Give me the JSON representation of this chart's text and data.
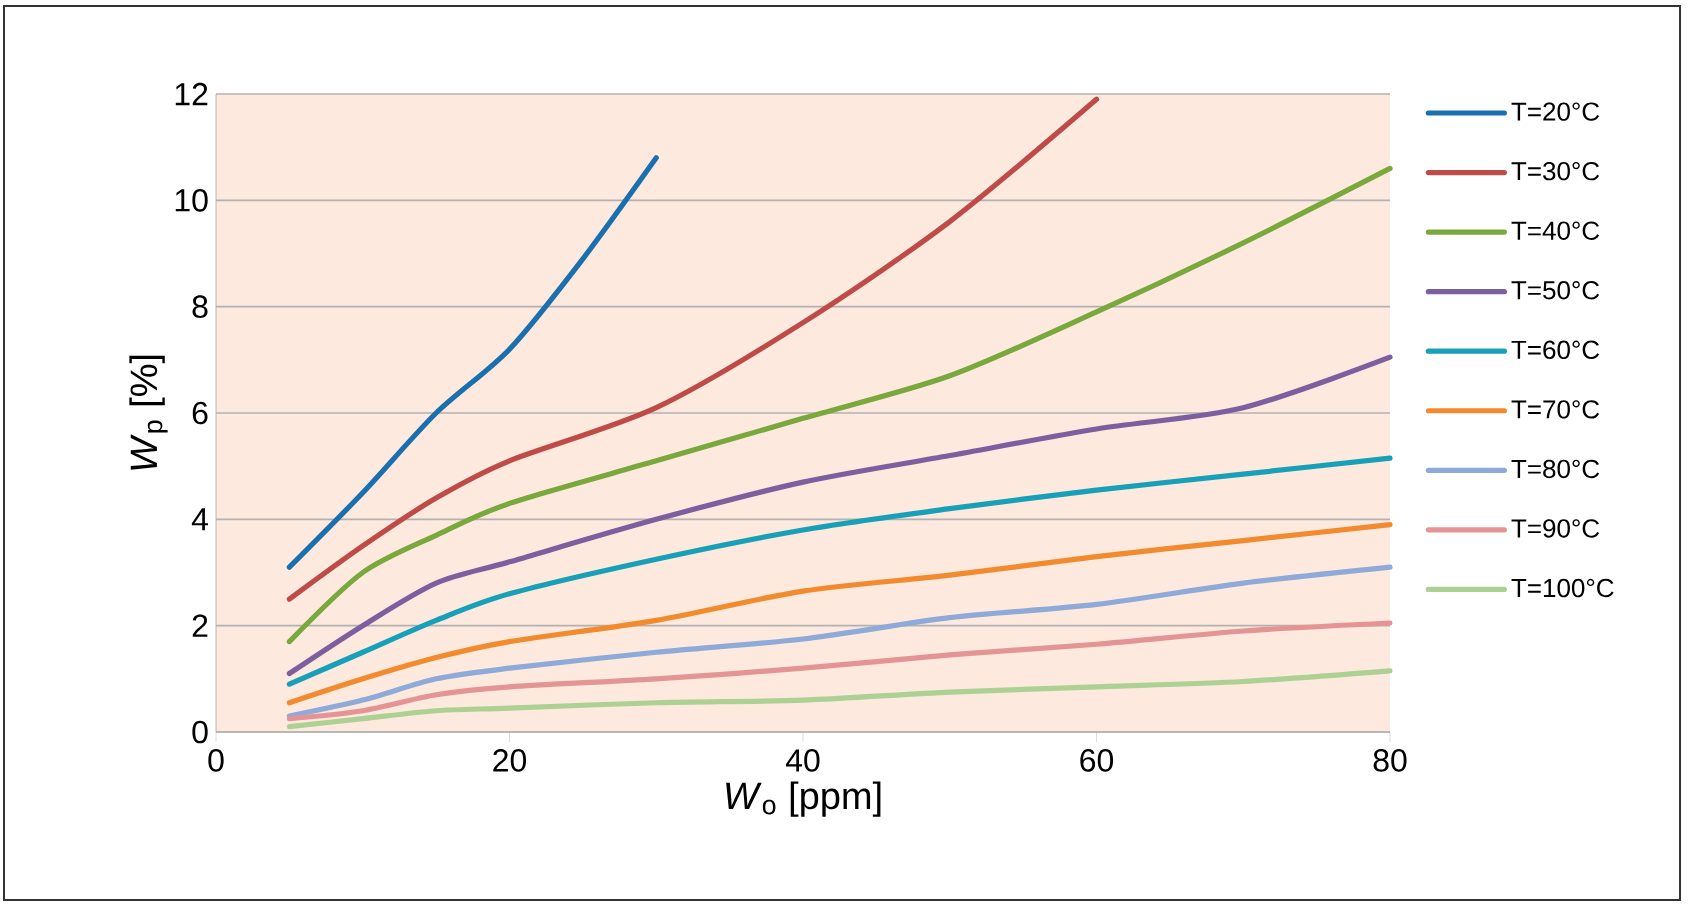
{
  "chart_data": {
    "type": "line",
    "xlabel": "*W*$_{o}$ [ppm]",
    "ylabel": "*W*$_{p}$ [%]",
    "xlim": [
      0,
      80
    ],
    "xticks": [
      0,
      20,
      40,
      60,
      80
    ],
    "ylim": [
      0,
      12
    ],
    "yticks": [
      0,
      2,
      4,
      6,
      8,
      10,
      12
    ],
    "grid": "y",
    "legend": "right",
    "marker": "none",
    "line_style": "solid",
    "series": [
      {
        "name": "T=20°C",
        "color": "#1a6faf",
        "x": [
          5,
          10,
          15,
          20,
          25,
          30
        ],
        "values": [
          3.1,
          4.5,
          6.0,
          7.2,
          8.9,
          10.8
        ]
      },
      {
        "name": "T=30°C",
        "color": "#be4b48",
        "x": [
          5,
          10,
          15,
          20,
          30,
          40,
          50,
          60
        ],
        "values": [
          2.5,
          3.5,
          4.4,
          5.1,
          6.1,
          7.7,
          9.6,
          11.9
        ]
      },
      {
        "name": "T=40°C",
        "color": "#79a83c",
        "x": [
          5,
          10,
          15,
          20,
          30,
          40,
          50,
          60,
          70,
          80
        ],
        "values": [
          1.7,
          3.0,
          3.7,
          4.3,
          5.1,
          5.9,
          6.7,
          7.9,
          9.2,
          10.6
        ]
      },
      {
        "name": "T=50°C",
        "color": "#7d5fa0",
        "x": [
          5,
          10,
          15,
          20,
          30,
          40,
          50,
          60,
          70,
          80
        ],
        "values": [
          1.1,
          2.0,
          2.8,
          3.2,
          4.0,
          4.7,
          5.2,
          5.7,
          6.1,
          7.05
        ]
      },
      {
        "name": "T=60°C",
        "color": "#17a0b8",
        "x": [
          5,
          10,
          15,
          20,
          30,
          40,
          50,
          60,
          70,
          80
        ],
        "values": [
          0.9,
          1.5,
          2.1,
          2.6,
          3.25,
          3.8,
          4.2,
          4.55,
          4.85,
          5.15
        ]
      },
      {
        "name": "T=70°C",
        "color": "#f28a2e",
        "x": [
          5,
          10,
          15,
          20,
          30,
          40,
          50,
          60,
          70,
          80
        ],
        "values": [
          0.55,
          1.0,
          1.4,
          1.7,
          2.1,
          2.65,
          2.95,
          3.3,
          3.6,
          3.9
        ]
      },
      {
        "name": "T=80°C",
        "color": "#8daad8",
        "x": [
          5,
          10,
          15,
          20,
          30,
          40,
          50,
          60,
          70,
          80
        ],
        "values": [
          0.3,
          0.6,
          1.0,
          1.2,
          1.5,
          1.75,
          2.15,
          2.4,
          2.8,
          3.1
        ]
      },
      {
        "name": "T=90°C",
        "color": "#e59495",
        "x": [
          5,
          10,
          15,
          20,
          30,
          40,
          50,
          60,
          70,
          80
        ],
        "values": [
          0.25,
          0.4,
          0.7,
          0.85,
          1.0,
          1.2,
          1.45,
          1.65,
          1.9,
          2.05
        ]
      },
      {
        "name": "T=100°C",
        "color": "#acd193",
        "x": [
          5,
          10,
          15,
          20,
          30,
          40,
          50,
          60,
          70,
          80
        ],
        "values": [
          0.1,
          0.25,
          0.4,
          0.45,
          0.55,
          0.6,
          0.75,
          0.85,
          0.95,
          1.15
        ]
      }
    ]
  }
}
